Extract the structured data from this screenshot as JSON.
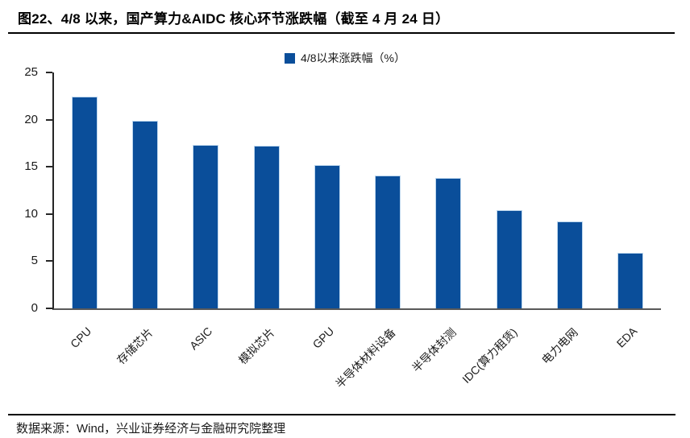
{
  "title": "图22、4/8 以来，国产算力&AIDC 核心环节涨跌幅（截至 4 月 24 日）",
  "footer": "数据来源：Wind，兴业证券经济与金融研究院整理",
  "colors": {
    "bar_fill": "#0A4E9A",
    "bar_border": "#BDD7EE",
    "axis_y": "#262626",
    "axis_x": "#595959",
    "text": "#1A1A1A"
  },
  "chart_data": {
    "type": "bar",
    "title": "图22、4/8 以来，国产算力&AIDC 核心环节涨跌幅（截至 4 月 24 日）",
    "legend": [
      "4/8以来涨跌幅（%）"
    ],
    "legend_position": "top-center",
    "categories": [
      "CPU",
      "存储芯片",
      "ASIC",
      "模拟芯片",
      "GPU",
      "半导体材料设备",
      "半导体封测",
      "IDC(算力租赁)",
      "电力电网",
      "EDA"
    ],
    "values": [
      22.4,
      19.9,
      17.3,
      17.2,
      15.2,
      14.1,
      13.8,
      10.4,
      9.2,
      5.9
    ],
    "xlabel": "",
    "ylabel": "",
    "ylim": [
      0,
      25
    ],
    "ytick_interval": 5,
    "grid": false,
    "x_label_rotation_deg": 45
  }
}
